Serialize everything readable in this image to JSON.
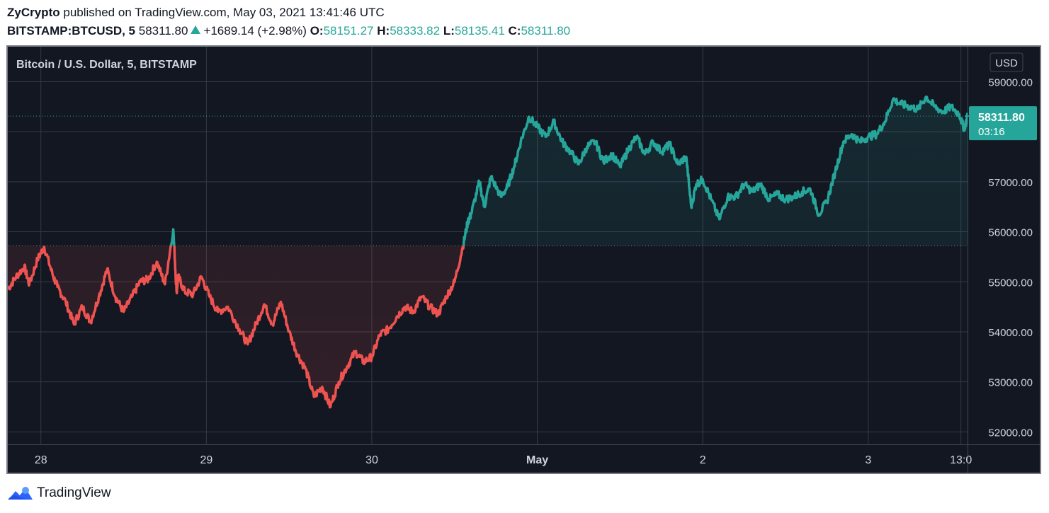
{
  "header": {
    "author": "ZyCrypto",
    "published": "published on TradingView.com, May 03, 2021 13:41:46 UTC",
    "symbol": "BITSTAMP:BTCUSD, 5",
    "last": "58311.80",
    "change": "+1689.14 (+2.98%)",
    "o_label": "O:",
    "o_value": "58151.27",
    "h_label": "H:",
    "h_value": "58333.82",
    "l_label": "L:",
    "l_value": "58135.41",
    "c_label": "C:",
    "c_value": "58311.80"
  },
  "footer": {
    "brand": "TradingView",
    "logo_icon": "tradingview-logo-icon"
  },
  "chart_data": {
    "type": "area",
    "title": "Bitcoin / U.S. Dollar, 5, BITSTAMP",
    "currency_label": "USD",
    "y_ticks": [
      "59000.00",
      "58000.00",
      "57000.00",
      "56000.00",
      "55000.00",
      "54000.00",
      "53000.00",
      "52000.00"
    ],
    "x_ticks": [
      "28",
      "29",
      "30",
      "May",
      "2",
      "3",
      "13:0"
    ],
    "x_tick_positions": [
      0.2,
      1.2,
      2.2,
      3.2,
      4.2,
      5.2,
      5.76
    ],
    "ylim": [
      51750,
      59700
    ],
    "xlim": [
      0,
      5.8
    ],
    "baseline": 55720,
    "last_price": 58311.8,
    "last_price_label": "58311.80",
    "countdown_label": "03:16",
    "colors": {
      "up": "#26a69a",
      "down": "#ef5350",
      "background": "#131722",
      "grid": "#363a45",
      "text": "#d1d4dc"
    },
    "x": [
      0,
      0.05,
      0.1,
      0.13,
      0.18,
      0.22,
      0.27,
      0.3,
      0.35,
      0.4,
      0.45,
      0.5,
      0.55,
      0.6,
      0.65,
      0.7,
      0.75,
      0.8,
      0.85,
      0.9,
      0.95,
      1.0,
      1.02,
      1.03,
      1.07,
      1.12,
      1.17,
      1.22,
      1.27,
      1.33,
      1.4,
      1.45,
      1.5,
      1.55,
      1.6,
      1.65,
      1.7,
      1.75,
      1.8,
      1.85,
      1.9,
      1.95,
      2.0,
      2.05,
      2.1,
      2.15,
      2.2,
      2.25,
      2.3,
      2.35,
      2.4,
      2.45,
      2.5,
      2.55,
      2.6,
      2.65,
      2.7,
      2.75,
      2.78,
      2.8,
      2.85,
      2.88,
      2.92,
      2.98,
      3.02,
      3.06,
      3.1,
      3.15,
      3.2,
      3.25,
      3.3,
      3.35,
      3.4,
      3.45,
      3.5,
      3.55,
      3.6,
      3.65,
      3.7,
      3.75,
      3.8,
      3.85,
      3.9,
      3.95,
      4.0,
      4.05,
      4.1,
      4.13,
      4.16,
      4.2,
      4.25,
      4.3,
      4.35,
      4.4,
      4.45,
      4.5,
      4.55,
      4.6,
      4.65,
      4.7,
      4.75,
      4.8,
      4.85,
      4.9,
      4.95,
      5.0,
      5.05,
      5.1,
      5.15,
      5.2,
      5.25,
      5.3,
      5.35,
      5.4,
      5.45,
      5.5,
      5.55,
      5.6,
      5.65,
      5.7,
      5.75,
      5.78,
      5.8
    ],
    "values": [
      54850,
      55100,
      55300,
      54950,
      55450,
      55700,
      55150,
      54900,
      54600,
      54150,
      54500,
      54200,
      54700,
      55250,
      54700,
      54400,
      54700,
      55000,
      55050,
      55400,
      54950,
      56050,
      54800,
      55100,
      54800,
      54750,
      55100,
      54700,
      54400,
      54500,
      54050,
      53750,
      54150,
      54550,
      54150,
      54600,
      54000,
      53550,
      53250,
      52700,
      52900,
      52500,
      53000,
      53300,
      53600,
      53400,
      53500,
      53950,
      54050,
      54300,
      54500,
      54400,
      54700,
      54500,
      54350,
      54700,
      55000,
      55700,
      56200,
      56350,
      57000,
      56500,
      57100,
      56700,
      56900,
      57300,
      57800,
      58300,
      58100,
      57900,
      58200,
      57800,
      57600,
      57350,
      57700,
      57800,
      57400,
      57550,
      57300,
      57650,
      57900,
      57550,
      57800,
      57600,
      57750,
      57350,
      57500,
      56500,
      56950,
      57050,
      56650,
      56250,
      56700,
      56700,
      56950,
      56800,
      56950,
      56650,
      56750,
      56650,
      56700,
      56800,
      56850,
      56350,
      56600,
      57200,
      57800,
      57950,
      57800,
      57900,
      57950,
      58200,
      58650,
      58550,
      58500,
      58450,
      58700,
      58500,
      58400,
      58500,
      58350,
      58050,
      58311.8
    ]
  }
}
